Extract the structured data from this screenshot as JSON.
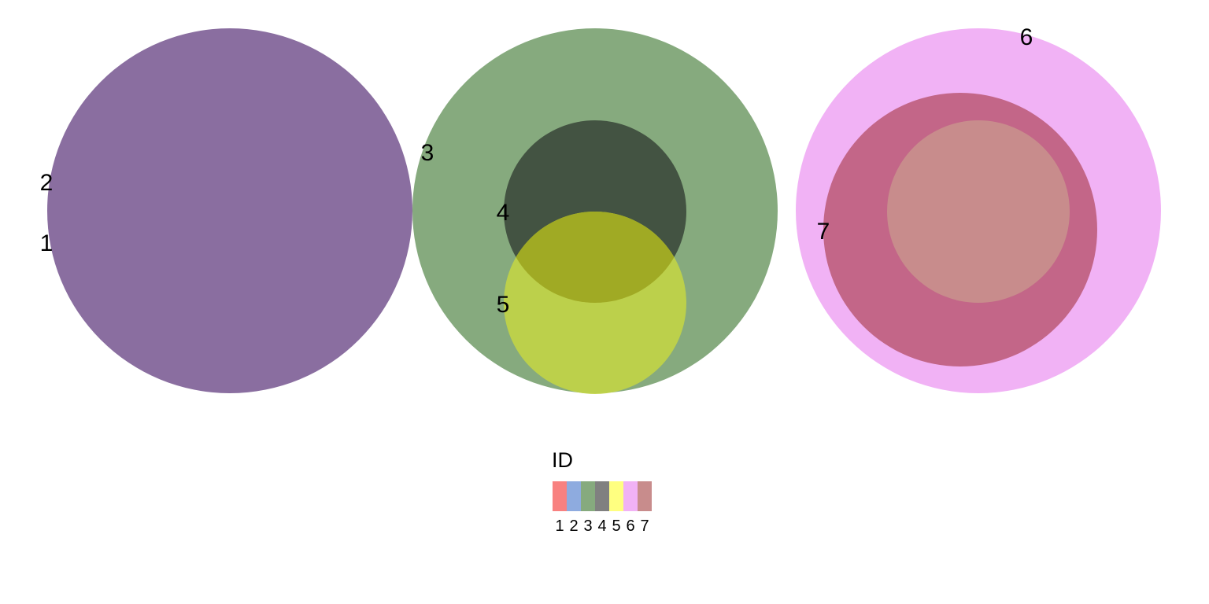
{
  "circles": [
    {
      "id": "1",
      "color": "#8A6EA0"
    },
    {
      "id": "2",
      "color": "#8A6EA0"
    },
    {
      "id": "3",
      "color": "#86AA7E"
    },
    {
      "id": "4",
      "color": "#435342"
    },
    {
      "id": "5",
      "color": "#C2D446"
    },
    {
      "id": "6",
      "color": "#F1B2F5"
    },
    {
      "id": "7",
      "color": "#C36688"
    }
  ],
  "legend": {
    "title": "ID",
    "items": [
      {
        "label": "1",
        "color": "#F88180"
      },
      {
        "label": "2",
        "color": "#8EABDF"
      },
      {
        "label": "3",
        "color": "#86AA7E"
      },
      {
        "label": "4",
        "color": "#808080"
      },
      {
        "label": "5",
        "color": "#FFFF80"
      },
      {
        "label": "6",
        "color": "#F1B2F5"
      },
      {
        "label": "7",
        "color": "#C88C8C"
      }
    ]
  }
}
